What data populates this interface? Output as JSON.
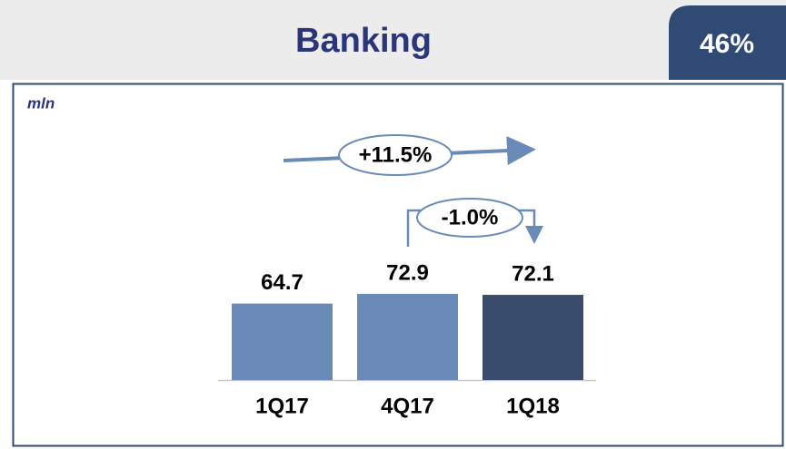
{
  "header": {
    "title": "Banking",
    "badge": "46%"
  },
  "chart_data": {
    "type": "bar",
    "unit": "mln",
    "categories": [
      "1Q17",
      "4Q17",
      "1Q18"
    ],
    "values": [
      64.7,
      72.9,
      72.1
    ],
    "colors": [
      "#6a8ab8",
      "#6a8ab8",
      "#3a4c6d"
    ],
    "annotations": [
      {
        "text": "+11.5%"
      },
      {
        "text": "-1.0%"
      }
    ]
  }
}
